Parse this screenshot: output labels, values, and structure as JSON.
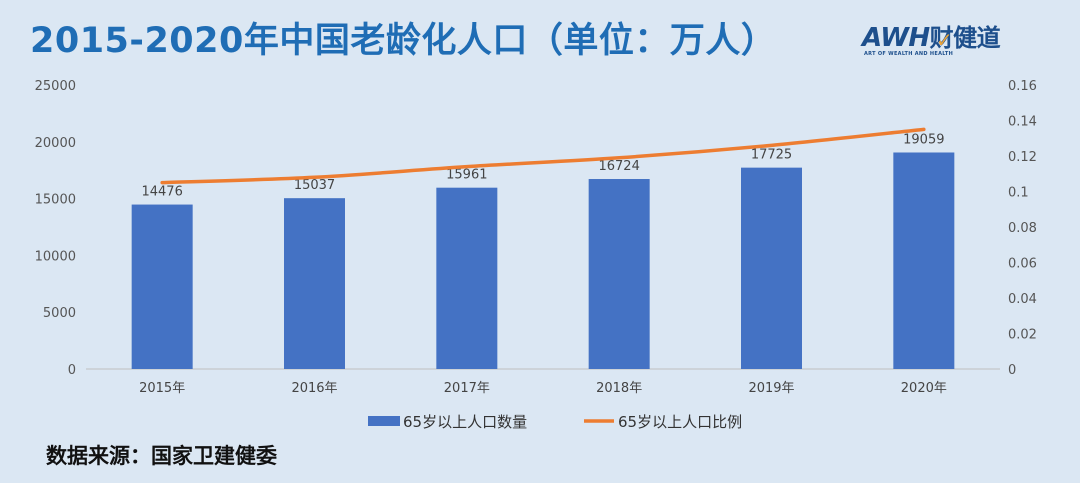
{
  "header": {
    "title": "2015-2020年中国老龄化人口（单位：万人）"
  },
  "logo": {
    "main": "AWH",
    "cn": "财健道",
    "sub": "ART OF WEALTH AND HEALTH"
  },
  "source": "数据来源：国家卫建健委",
  "colors": {
    "bar": "#4472c4",
    "line": "#ed7d31",
    "title": "#1f6db5",
    "background": "#dbe7f3"
  },
  "chart_data": {
    "type": "bar",
    "categories": [
      "2015年",
      "2016年",
      "2017年",
      "2018年",
      "2019年",
      "2020年"
    ],
    "series": [
      {
        "name": "65岁以上人口数量",
        "type": "bar",
        "axis": "left",
        "values": [
          14476,
          15037,
          15961,
          16724,
          17725,
          19059
        ],
        "data_labels": [
          "14476",
          "15037",
          "15961",
          "16724",
          "17725",
          "19059"
        ]
      },
      {
        "name": "65岁以上人口比例",
        "type": "line",
        "axis": "right",
        "values": [
          0.105,
          0.108,
          0.114,
          0.119,
          0.126,
          0.135
        ]
      }
    ],
    "y_left": {
      "ylim": [
        0,
        25000
      ],
      "ticks": [
        "0",
        "5000",
        "10000",
        "15000",
        "20000",
        "25000"
      ],
      "tick_values": [
        0,
        5000,
        10000,
        15000,
        20000,
        25000
      ]
    },
    "y_right": {
      "ylim": [
        0,
        0.16
      ],
      "ticks": [
        "0",
        "0.02",
        "0.04",
        "0.06",
        "0.08",
        "0.1",
        "0.12",
        "0.14",
        "0.16"
      ],
      "tick_values": [
        0,
        0.02,
        0.04,
        0.06,
        0.08,
        0.1,
        0.12,
        0.14,
        0.16
      ]
    },
    "grid": false,
    "legend": "bottom"
  }
}
